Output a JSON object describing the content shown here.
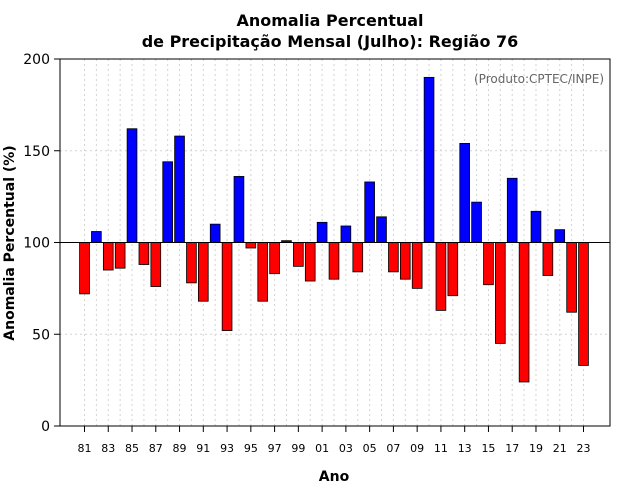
{
  "chart_data": {
    "type": "bar",
    "title_line1": "Anomalia Percentual",
    "title_line2": "de Precipitação Mensal (Julho): Região 76",
    "xlabel": "Ano",
    "ylabel": "Anomalia Percentual (%)",
    "credit": "(Produto:CPTEC/INPE)",
    "ylim": [
      0,
      200
    ],
    "yticks": [
      0,
      50,
      100,
      150,
      200
    ],
    "baseline": 100,
    "grid": true,
    "colors": {
      "above": "#0000ff",
      "below": "#ff0000",
      "axis": "#000000",
      "grid": "#d3d3d3"
    },
    "categories": [
      "81",
      "82",
      "83",
      "84",
      "85",
      "86",
      "87",
      "88",
      "89",
      "90",
      "91",
      "92",
      "93",
      "94",
      "95",
      "96",
      "97",
      "98",
      "99",
      "00",
      "01",
      "02",
      "03",
      "04",
      "05",
      "06",
      "07",
      "08",
      "09",
      "10",
      "11",
      "12",
      "13",
      "14",
      "15",
      "16",
      "17",
      "18",
      "19",
      "20",
      "21",
      "22",
      "23"
    ],
    "xtick_labels": [
      "81",
      "83",
      "85",
      "87",
      "89",
      "91",
      "93",
      "95",
      "97",
      "99",
      "01",
      "03",
      "05",
      "07",
      "09",
      "11",
      "13",
      "15",
      "17",
      "19",
      "21",
      "23"
    ],
    "values": [
      72,
      106,
      85,
      86,
      162,
      88,
      76,
      144,
      158,
      78,
      68,
      110,
      52,
      136,
      97,
      68,
      83,
      101,
      87,
      79,
      111,
      80,
      109,
      84,
      133,
      114,
      84,
      80,
      75,
      190,
      63,
      71,
      154,
      122,
      77,
      45,
      135,
      24,
      117,
      82,
      107,
      62,
      33
    ]
  }
}
